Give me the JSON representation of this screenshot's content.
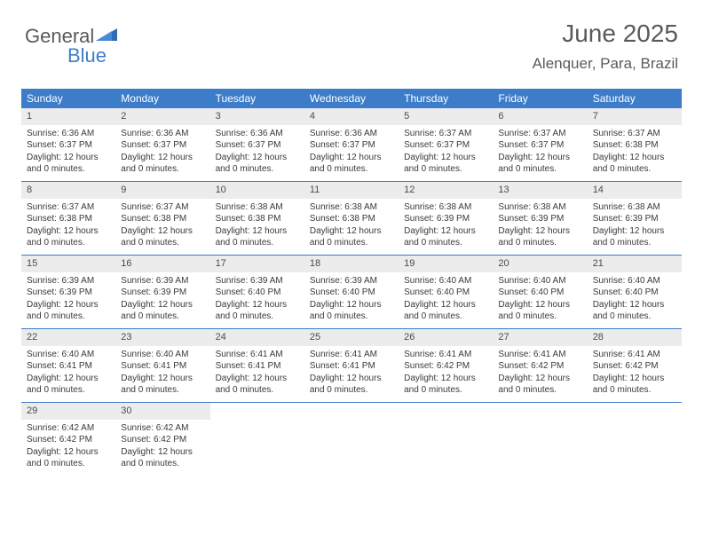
{
  "logo": {
    "textGeneral": "General",
    "textBlue": "Blue"
  },
  "title": "June 2025",
  "location": "Alenquer, Para, Brazil",
  "colors": {
    "headerBg": "#3d7cc9",
    "headerText": "#ffffff",
    "dayNumBg": "#ececec",
    "textColor": "#3a3a3a",
    "titleColor": "#5a5a5a",
    "rowBorder": "#3d7cc9"
  },
  "dayHeaders": [
    "Sunday",
    "Monday",
    "Tuesday",
    "Wednesday",
    "Thursday",
    "Friday",
    "Saturday"
  ],
  "weeks": [
    [
      {
        "num": "1",
        "sunrise": "6:36 AM",
        "sunset": "6:37 PM",
        "daylight": "12 hours and 0 minutes."
      },
      {
        "num": "2",
        "sunrise": "6:36 AM",
        "sunset": "6:37 PM",
        "daylight": "12 hours and 0 minutes."
      },
      {
        "num": "3",
        "sunrise": "6:36 AM",
        "sunset": "6:37 PM",
        "daylight": "12 hours and 0 minutes."
      },
      {
        "num": "4",
        "sunrise": "6:36 AM",
        "sunset": "6:37 PM",
        "daylight": "12 hours and 0 minutes."
      },
      {
        "num": "5",
        "sunrise": "6:37 AM",
        "sunset": "6:37 PM",
        "daylight": "12 hours and 0 minutes."
      },
      {
        "num": "6",
        "sunrise": "6:37 AM",
        "sunset": "6:37 PM",
        "daylight": "12 hours and 0 minutes."
      },
      {
        "num": "7",
        "sunrise": "6:37 AM",
        "sunset": "6:38 PM",
        "daylight": "12 hours and 0 minutes."
      }
    ],
    [
      {
        "num": "8",
        "sunrise": "6:37 AM",
        "sunset": "6:38 PM",
        "daylight": "12 hours and 0 minutes."
      },
      {
        "num": "9",
        "sunrise": "6:37 AM",
        "sunset": "6:38 PM",
        "daylight": "12 hours and 0 minutes."
      },
      {
        "num": "10",
        "sunrise": "6:38 AM",
        "sunset": "6:38 PM",
        "daylight": "12 hours and 0 minutes."
      },
      {
        "num": "11",
        "sunrise": "6:38 AM",
        "sunset": "6:38 PM",
        "daylight": "12 hours and 0 minutes."
      },
      {
        "num": "12",
        "sunrise": "6:38 AM",
        "sunset": "6:39 PM",
        "daylight": "12 hours and 0 minutes."
      },
      {
        "num": "13",
        "sunrise": "6:38 AM",
        "sunset": "6:39 PM",
        "daylight": "12 hours and 0 minutes."
      },
      {
        "num": "14",
        "sunrise": "6:38 AM",
        "sunset": "6:39 PM",
        "daylight": "12 hours and 0 minutes."
      }
    ],
    [
      {
        "num": "15",
        "sunrise": "6:39 AM",
        "sunset": "6:39 PM",
        "daylight": "12 hours and 0 minutes."
      },
      {
        "num": "16",
        "sunrise": "6:39 AM",
        "sunset": "6:39 PM",
        "daylight": "12 hours and 0 minutes."
      },
      {
        "num": "17",
        "sunrise": "6:39 AM",
        "sunset": "6:40 PM",
        "daylight": "12 hours and 0 minutes."
      },
      {
        "num": "18",
        "sunrise": "6:39 AM",
        "sunset": "6:40 PM",
        "daylight": "12 hours and 0 minutes."
      },
      {
        "num": "19",
        "sunrise": "6:40 AM",
        "sunset": "6:40 PM",
        "daylight": "12 hours and 0 minutes."
      },
      {
        "num": "20",
        "sunrise": "6:40 AM",
        "sunset": "6:40 PM",
        "daylight": "12 hours and 0 minutes."
      },
      {
        "num": "21",
        "sunrise": "6:40 AM",
        "sunset": "6:40 PM",
        "daylight": "12 hours and 0 minutes."
      }
    ],
    [
      {
        "num": "22",
        "sunrise": "6:40 AM",
        "sunset": "6:41 PM",
        "daylight": "12 hours and 0 minutes."
      },
      {
        "num": "23",
        "sunrise": "6:40 AM",
        "sunset": "6:41 PM",
        "daylight": "12 hours and 0 minutes."
      },
      {
        "num": "24",
        "sunrise": "6:41 AM",
        "sunset": "6:41 PM",
        "daylight": "12 hours and 0 minutes."
      },
      {
        "num": "25",
        "sunrise": "6:41 AM",
        "sunset": "6:41 PM",
        "daylight": "12 hours and 0 minutes."
      },
      {
        "num": "26",
        "sunrise": "6:41 AM",
        "sunset": "6:42 PM",
        "daylight": "12 hours and 0 minutes."
      },
      {
        "num": "27",
        "sunrise": "6:41 AM",
        "sunset": "6:42 PM",
        "daylight": "12 hours and 0 minutes."
      },
      {
        "num": "28",
        "sunrise": "6:41 AM",
        "sunset": "6:42 PM",
        "daylight": "12 hours and 0 minutes."
      }
    ],
    [
      {
        "num": "29",
        "sunrise": "6:42 AM",
        "sunset": "6:42 PM",
        "daylight": "12 hours and 0 minutes."
      },
      {
        "num": "30",
        "sunrise": "6:42 AM",
        "sunset": "6:42 PM",
        "daylight": "12 hours and 0 minutes."
      },
      null,
      null,
      null,
      null,
      null
    ]
  ],
  "labels": {
    "sunrise": "Sunrise:",
    "sunset": "Sunset:",
    "daylight": "Daylight:"
  }
}
